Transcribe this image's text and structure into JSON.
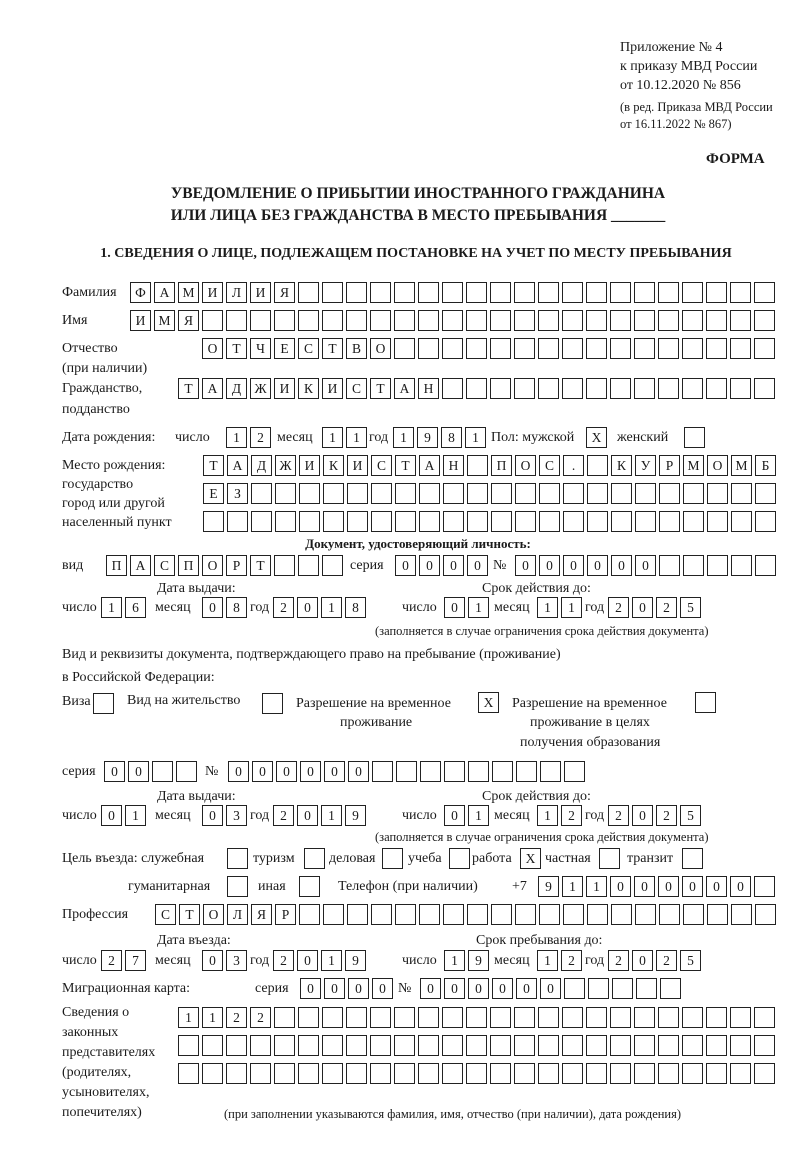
{
  "header": {
    "annex": "Приложение № 4",
    "order": "к приказу МВД России",
    "order_date": "от 10.12.2020 № 856",
    "edit_line1": "(в ред. Приказа МВД России",
    "edit_line2": "от 16.11.2022 № 867)",
    "form": "ФОРМА"
  },
  "title": {
    "line1": "УВЕДОМЛЕНИЕ О ПРИБЫТИИ ИНОСТРАННОГО ГРАЖДАНИНА",
    "line2": "ИЛИ ЛИЦА БЕЗ ГРАЖДАНСТВА В МЕСТО ПРЕБЫВАНИЯ _______"
  },
  "section1": {
    "heading": "1. СВЕДЕНИЯ О ЛИЦЕ, ПОДЛЕЖАЩЕМ ПОСТАНОВКЕ НА УЧЕТ ПО МЕСТУ ПРЕБЫВАНИЯ"
  },
  "labels": {
    "surname": "Фамилия",
    "name": "Имя",
    "patronymic": "Отчество",
    "patronymic_note": "(при наличии)",
    "citizenship1": "Гражданство,",
    "citizenship2": "подданство",
    "birth_date": "Дата рождения:",
    "day": "число",
    "month": "месяц",
    "year": "год",
    "sex_male": "Пол: мужской",
    "sex_female": "женский",
    "birthplace1": "Место рождения:",
    "birthplace2": "государство",
    "birthplace3": "город или другой",
    "birthplace4": "населенный пункт",
    "id_doc": "Документ, удостоверяющий личность:",
    "kind": "вид",
    "series": "серия",
    "number": "№",
    "issue_date": "Дата выдачи:",
    "valid_until": "Срок действия до:",
    "validity_note": "(заполняется в случае ограничения срока действия документа)",
    "right_doc1": "Вид и реквизиты документа, подтверждающего право на пребывание (проживание)",
    "right_doc2": "в Российской Федерации:",
    "visa": "Виза",
    "residence": "Вид на жительство",
    "trp1": "Разрешение на временное",
    "trp2": "проживание",
    "trp_edu1": "Разрешение на временное",
    "trp_edu2": "проживание в целях",
    "trp_edu3": "получения образования",
    "purpose": "Цель въезда: служебная",
    "tourism": "туризм",
    "business": "деловая",
    "study": "учеба",
    "work": "работа",
    "private": "частная",
    "transit": "транзит",
    "humanitarian": "гуманитарная",
    "other": "иная",
    "phone": "Телефон (при наличии)",
    "phone_prefix": "+7",
    "profession": "Профессия",
    "entry_date": "Дата въезда:",
    "stay_until": "Срок пребывания до:",
    "migration_card": "Миграционная карта:",
    "reps1": "Сведения о",
    "reps2": "законных",
    "reps3": "представителях",
    "reps4": "(родителях,",
    "reps5": "усыновителях,",
    "reps6": "попечителях)",
    "reps_note": "(при заполнении указываются фамилия, имя, отчество (при наличии), дата рождения)"
  },
  "person": {
    "surname": "ФАМИЛИЯ",
    "name": "ИМЯ",
    "patronymic": "ОТЧЕСТВО",
    "citizenship": "ТАДЖИКИСТАН",
    "birth_day": "12",
    "birth_month": "11",
    "birth_year": "1981",
    "sex_male": "X",
    "sex_female": "",
    "birthplace_line1": "ТАДЖИКИСТАН ПОС. КУРМОМБ",
    "birthplace_line2": "ЕЗ",
    "birthplace_line3": ""
  },
  "id_document": {
    "kind": "ПАСПОРТ",
    "series": "0000",
    "number": "000000",
    "issue_day": "16",
    "issue_month": "08",
    "issue_year": "2018",
    "valid_day": "01",
    "valid_month": "11",
    "valid_year": "2025"
  },
  "right_document": {
    "visa": "",
    "residence_permit": "",
    "temporary_residence_permit": "X",
    "temporary_residence_permit_education": "",
    "series": "00",
    "number": "000000",
    "issue_day": "01",
    "issue_month": "03",
    "issue_year": "2019",
    "valid_day": "01",
    "valid_month": "12",
    "valid_year": "2025"
  },
  "visit": {
    "official": "",
    "tourism": "",
    "business": "",
    "study": "",
    "work": "X",
    "private": "",
    "transit": "",
    "humanitarian": "",
    "other": "",
    "phone": "911000000",
    "profession": "СТОЛЯР",
    "entry_day": "27",
    "entry_month": "03",
    "entry_year": "2019",
    "stay_day": "19",
    "stay_month": "12",
    "stay_year": "2025"
  },
  "migration_card": {
    "series": "0000",
    "number": "000000"
  },
  "representatives": {
    "line1": "1122",
    "line2": "",
    "line3": ""
  }
}
